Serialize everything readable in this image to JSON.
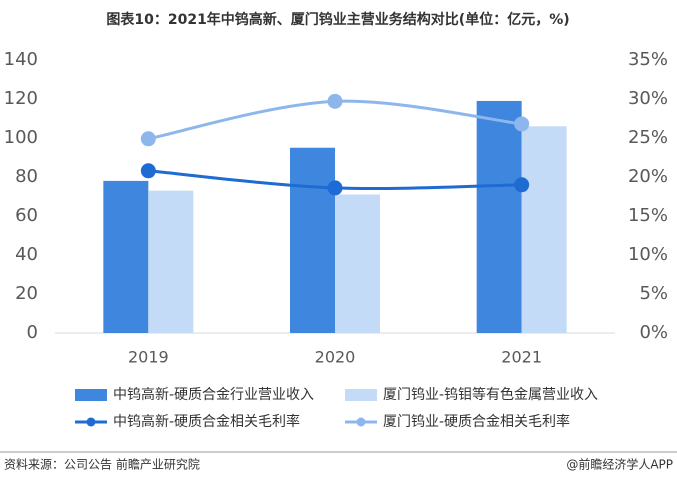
{
  "chart_data": {
    "type": "bar-line",
    "title": "图表10：2021年中钨高新、厦门钨业主营业务结构对比(单位：亿元，%)",
    "categories": [
      "2019",
      "2020",
      "2021"
    ],
    "series": [
      {
        "name": "中钨高新-硬质合金行业营业收入",
        "type": "bar",
        "color": "#3f86de",
        "values": [
          78,
          95,
          119
        ]
      },
      {
        "name": "厦门钨业-钨钼等有色金属营业收入",
        "type": "bar",
        "color": "#c4dbf7",
        "values": [
          73,
          71,
          106
        ]
      },
      {
        "name": "中钨高新-硬质合金相关毛利率",
        "type": "line",
        "axis": "y2",
        "color": "#1e6bd3",
        "values": [
          20.8,
          18.6,
          19.0
        ]
      },
      {
        "name": "厦门钨业-硬质合金相关毛利率",
        "type": "line",
        "axis": "y2",
        "color": "#8db7ec",
        "values": [
          24.9,
          29.7,
          26.8
        ]
      }
    ],
    "ylim": [
      0,
      140
    ],
    "yticks": [
      0,
      20,
      40,
      60,
      80,
      100,
      120,
      140
    ],
    "y2lim": [
      0,
      35
    ],
    "y2ticks": [
      {
        "value": 0,
        "label": "0%"
      },
      {
        "value": 5,
        "label": "5%"
      },
      {
        "value": 10,
        "label": "10%"
      },
      {
        "value": 15,
        "label": "15%"
      },
      {
        "value": 20,
        "label": "20%"
      },
      {
        "value": 25,
        "label": "25%"
      },
      {
        "value": 30,
        "label": "30%"
      },
      {
        "value": 35,
        "label": "35%"
      }
    ],
    "source": "资料来源：公司公告 前瞻产业研究院",
    "credit": "@前瞻经济学人APP"
  }
}
